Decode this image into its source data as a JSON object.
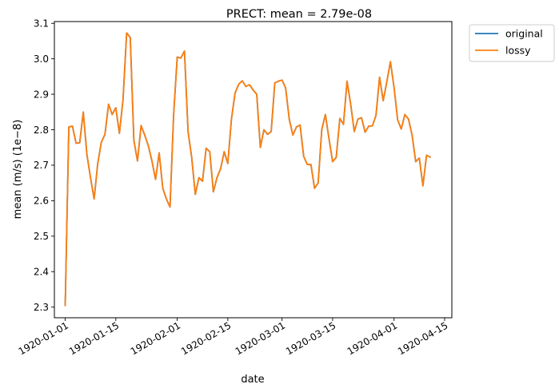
{
  "chart_data": {
    "type": "line",
    "title": "PRECT: mean =  2.79e-08",
    "xlabel": "date",
    "ylabel": "mean (m/s) (1e−8)",
    "ylim": [
      2.27,
      3.105
    ],
    "xlim": [
      "1919-12-29",
      "1920-04-17"
    ],
    "grid": false,
    "legend_placement": "outside-top-right",
    "x_ticks": [
      "1920-01-01",
      "1920-01-15",
      "1920-02-01",
      "1920-02-15",
      "1920-03-01",
      "1920-03-15",
      "1920-04-01",
      "1920-04-15"
    ],
    "y_ticks": [
      "2.3",
      "2.4",
      "2.5",
      "2.6",
      "2.7",
      "2.8",
      "2.9",
      "3.0",
      "3.1"
    ],
    "x": [
      "1920-01-01",
      "1920-01-02",
      "1920-01-03",
      "1920-01-04",
      "1920-01-05",
      "1920-01-06",
      "1920-01-07",
      "1920-01-08",
      "1920-01-09",
      "1920-01-10",
      "1920-01-11",
      "1920-01-12",
      "1920-01-13",
      "1920-01-14",
      "1920-01-15",
      "1920-01-16",
      "1920-01-17",
      "1920-01-18",
      "1920-01-19",
      "1920-01-20",
      "1920-01-21",
      "1920-01-22",
      "1920-01-23",
      "1920-01-24",
      "1920-01-25",
      "1920-01-26",
      "1920-01-27",
      "1920-01-28",
      "1920-01-29",
      "1920-01-30",
      "1920-01-31",
      "1920-02-01",
      "1920-02-02",
      "1920-02-03",
      "1920-02-04",
      "1920-02-05",
      "1920-02-06",
      "1920-02-07",
      "1920-02-08",
      "1920-02-09",
      "1920-02-10",
      "1920-02-11",
      "1920-02-12",
      "1920-02-13",
      "1920-02-14",
      "1920-02-15",
      "1920-02-16",
      "1920-02-17",
      "1920-02-18",
      "1920-02-19",
      "1920-02-20",
      "1920-02-21",
      "1920-02-22",
      "1920-02-23",
      "1920-02-24",
      "1920-02-25",
      "1920-02-26",
      "1920-02-27",
      "1920-02-28",
      "1920-02-29",
      "1920-03-01",
      "1920-03-02",
      "1920-03-03",
      "1920-03-04",
      "1920-03-05",
      "1920-03-06",
      "1920-03-07",
      "1920-03-08",
      "1920-03-09",
      "1920-03-10",
      "1920-03-11",
      "1920-03-12",
      "1920-03-13",
      "1920-03-14",
      "1920-03-15",
      "1920-03-16",
      "1920-03-17",
      "1920-03-18",
      "1920-03-19",
      "1920-03-20",
      "1920-03-21",
      "1920-03-22",
      "1920-03-23",
      "1920-03-24",
      "1920-03-25",
      "1920-03-26",
      "1920-03-27",
      "1920-03-28",
      "1920-03-29",
      "1920-03-30",
      "1920-03-31",
      "1920-04-01",
      "1920-04-02",
      "1920-04-03",
      "1920-04-04",
      "1920-04-05",
      "1920-04-06",
      "1920-04-07",
      "1920-04-08",
      "1920-04-09",
      "1920-04-10",
      "1920-04-11"
    ],
    "series": [
      {
        "name": "original",
        "color": "#1f77b4",
        "values": [
          2.305,
          2.808,
          2.81,
          2.762,
          2.763,
          2.85,
          2.73,
          2.665,
          2.605,
          2.705,
          2.765,
          2.787,
          2.872,
          2.843,
          2.862,
          2.79,
          2.885,
          3.073,
          3.06,
          2.77,
          2.712,
          2.812,
          2.785,
          2.755,
          2.712,
          2.66,
          2.735,
          2.635,
          2.605,
          2.582,
          2.842,
          3.005,
          3.002,
          3.022,
          2.795,
          2.722,
          2.618,
          2.665,
          2.655,
          2.748,
          2.738,
          2.625,
          2.665,
          2.69,
          2.738,
          2.705,
          2.83,
          2.903,
          2.928,
          2.938,
          2.922,
          2.927,
          2.912,
          2.9,
          2.75,
          2.8,
          2.787,
          2.795,
          2.932,
          2.937,
          2.94,
          2.918,
          2.83,
          2.785,
          2.808,
          2.813,
          2.725,
          2.702,
          2.702,
          2.635,
          2.65,
          2.8,
          2.843,
          2.775,
          2.71,
          2.722,
          2.832,
          2.815,
          2.937,
          2.872,
          2.795,
          2.83,
          2.834,
          2.793,
          2.81,
          2.811,
          2.84,
          2.948,
          2.882,
          2.935,
          2.992,
          2.92,
          2.828,
          2.802,
          2.843,
          2.83,
          2.785,
          2.71,
          2.72,
          2.642,
          2.728,
          2.723
        ]
      },
      {
        "name": "lossy",
        "color": "#ff7f0e",
        "values": [
          2.305,
          2.808,
          2.81,
          2.762,
          2.763,
          2.85,
          2.73,
          2.665,
          2.605,
          2.705,
          2.765,
          2.787,
          2.872,
          2.843,
          2.862,
          2.79,
          2.885,
          3.073,
          3.06,
          2.77,
          2.712,
          2.812,
          2.785,
          2.755,
          2.712,
          2.66,
          2.735,
          2.635,
          2.605,
          2.582,
          2.842,
          3.005,
          3.002,
          3.022,
          2.795,
          2.722,
          2.618,
          2.665,
          2.655,
          2.748,
          2.738,
          2.625,
          2.665,
          2.69,
          2.738,
          2.705,
          2.83,
          2.903,
          2.928,
          2.938,
          2.922,
          2.927,
          2.912,
          2.9,
          2.75,
          2.8,
          2.787,
          2.795,
          2.932,
          2.937,
          2.94,
          2.918,
          2.83,
          2.785,
          2.808,
          2.813,
          2.725,
          2.702,
          2.702,
          2.635,
          2.65,
          2.8,
          2.843,
          2.775,
          2.71,
          2.722,
          2.832,
          2.815,
          2.937,
          2.872,
          2.795,
          2.83,
          2.834,
          2.793,
          2.81,
          2.811,
          2.84,
          2.948,
          2.882,
          2.935,
          2.992,
          2.92,
          2.828,
          2.802,
          2.843,
          2.83,
          2.785,
          2.71,
          2.72,
          2.642,
          2.728,
          2.723
        ]
      }
    ]
  }
}
